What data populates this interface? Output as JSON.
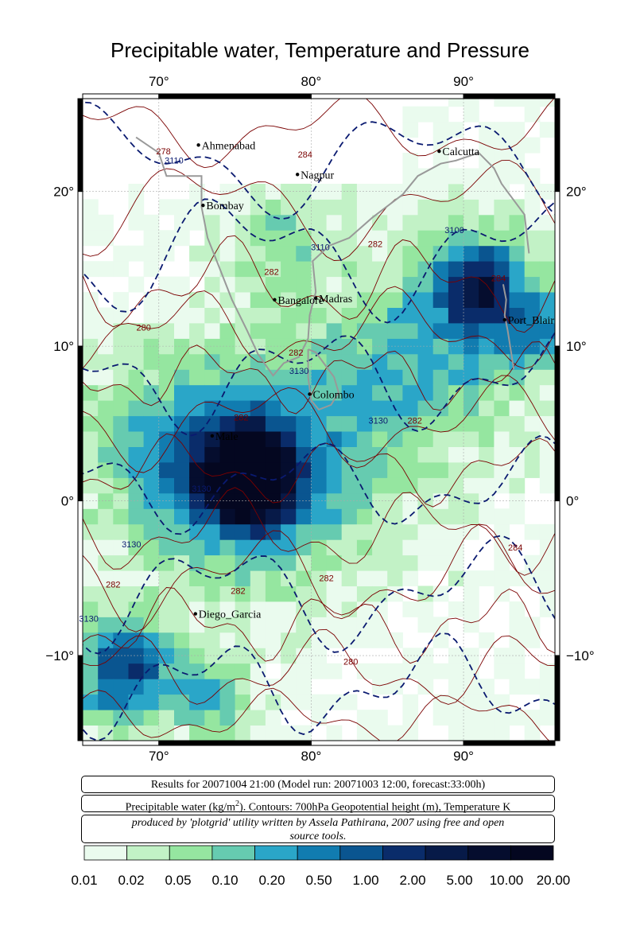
{
  "title": "Precipitable water, Temperature and Pressure",
  "map": {
    "lon_min": 65,
    "lon_max": 96,
    "lat_min": -15.5,
    "lat_max": 26,
    "top_lon_labels": [
      "70°",
      "80°",
      "90°"
    ],
    "bottom_lon_labels": [
      "70°",
      "80°",
      "90°"
    ],
    "lon_ticks": [
      70,
      80,
      90
    ],
    "left_lat_labels": [
      "20°",
      "10°",
      "0°",
      "−10°"
    ],
    "right_lat_labels": [
      "20°",
      "10°",
      "0°",
      "−10°"
    ],
    "lat_ticks": [
      20,
      10,
      0,
      -10
    ],
    "cities": [
      {
        "name": "Ahmenabad",
        "lon": 72.6,
        "lat": 23.0
      },
      {
        "name": "Calcutta",
        "lon": 88.4,
        "lat": 22.6
      },
      {
        "name": "Nagpur",
        "lon": 79.1,
        "lat": 21.1
      },
      {
        "name": "Bombay",
        "lon": 72.9,
        "lat": 19.1
      },
      {
        "name": "Madras",
        "lon": 80.3,
        "lat": 13.1
      },
      {
        "name": "Bangalore",
        "lon": 77.6,
        "lat": 13.0
      },
      {
        "name": "Port_Blair",
        "lon": 92.7,
        "lat": 11.7
      },
      {
        "name": "Colombo",
        "lon": 79.9,
        "lat": 6.9
      },
      {
        "name": "Male",
        "lon": 73.5,
        "lat": 4.2
      },
      {
        "name": "Diego_Garcia",
        "lon": 72.4,
        "lat": -7.3
      }
    ],
    "contour_labels_temperature": [
      {
        "text": "278",
        "lon": 70.3,
        "lat": 22.4
      },
      {
        "text": "284",
        "lon": 79.6,
        "lat": 22.2
      },
      {
        "text": "282",
        "lon": 77.4,
        "lat": 14.6
      },
      {
        "text": "282",
        "lon": 84.2,
        "lat": 16.4
      },
      {
        "text": "284",
        "lon": 92.3,
        "lat": 14.2
      },
      {
        "text": "280",
        "lon": 69.0,
        "lat": 11.0
      },
      {
        "text": "282",
        "lon": 79.0,
        "lat": 9.4
      },
      {
        "text": "282",
        "lon": 75.4,
        "lat": 5.2
      },
      {
        "text": "282",
        "lon": 86.8,
        "lat": 5.0
      },
      {
        "text": "284",
        "lon": 93.4,
        "lat": -3.2
      },
      {
        "text": "282",
        "lon": 67.0,
        "lat": -5.6
      },
      {
        "text": "282",
        "lon": 75.2,
        "lat": -6.0
      },
      {
        "text": "282",
        "lon": 81.0,
        "lat": -5.2
      },
      {
        "text": "280",
        "lon": 82.6,
        "lat": -10.6
      }
    ],
    "contour_labels_height": [
      {
        "text": "3110",
        "lon": 71.0,
        "lat": 21.8
      },
      {
        "text": "3110",
        "lon": 80.6,
        "lat": 16.2
      },
      {
        "text": "3100",
        "lon": 89.4,
        "lat": 17.3
      },
      {
        "text": "3130",
        "lon": 79.2,
        "lat": 8.2
      },
      {
        "text": "3130",
        "lon": 84.4,
        "lat": 5.0
      },
      {
        "text": "3130",
        "lon": 72.8,
        "lat": 0.6
      },
      {
        "text": "3130",
        "lon": 68.2,
        "lat": -3.0
      },
      {
        "text": "3130",
        "lon": 65.4,
        "lat": -7.8
      }
    ]
  },
  "info": {
    "results_line": "Results for 20071004 21:00 (Model run: 20071003 12:00, forecast:33:00h)",
    "legend_line_prefix": "Precipitable water (kg/m",
    "legend_line_sup": "2",
    "legend_line_suffix": ").  Contours: 700hPa Geopotential height (m), Temperature K",
    "credit_line_1": "produced by 'plotgrid' utility written by Assela Pathirana, 2007 using free and open",
    "credit_line_2": "source tools."
  },
  "colorbar": {
    "labels": [
      "0.01",
      "0.02",
      "0.05",
      "0.10",
      "0.20",
      "0.50",
      "1.00",
      "2.00",
      "5.00",
      "10.00",
      "20.00"
    ],
    "colors": [
      "#eafbee",
      "#c2f2c6",
      "#95e6a0",
      "#66cbb0",
      "#2aa6c8",
      "#117cb0",
      "#0a5590",
      "#0a2c6a",
      "#071a48",
      "#050d2e",
      "#040720"
    ]
  },
  "colors": {
    "temperature_contour": "#7a0000",
    "height_contour": "#0a1a70",
    "coastline": "#999999"
  }
}
